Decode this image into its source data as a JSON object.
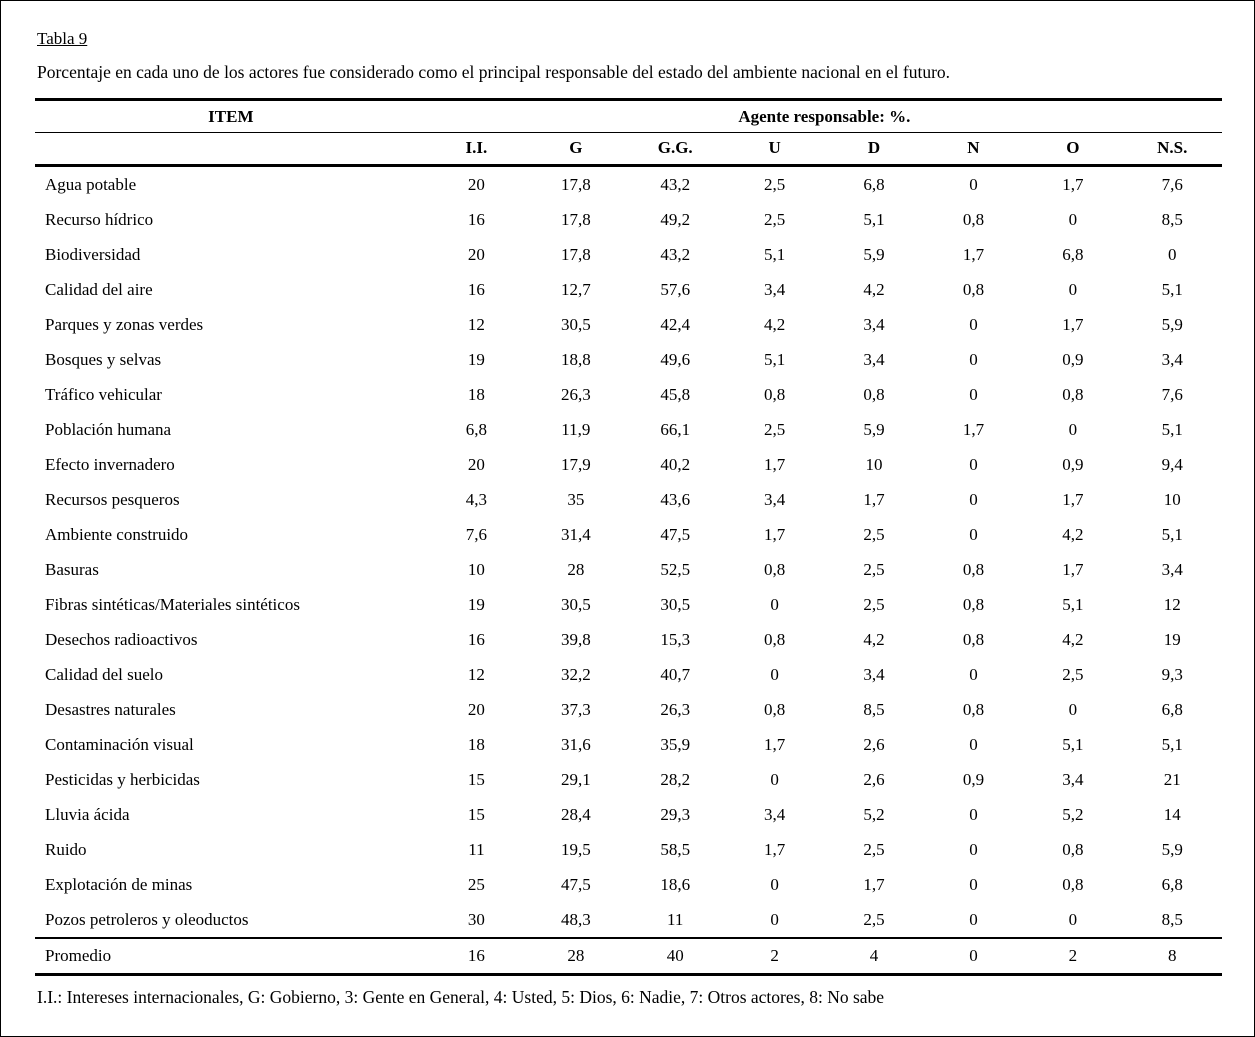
{
  "page": {
    "table_label": "Tabla 9",
    "caption": "Porcentaje en cada uno de los actores fue considerado como el principal responsable del estado del ambiente nacional en el futuro.",
    "footnote": "I.I.: Intereses internacionales, G: Gobierno, 3: Gente en General, 4: Usted, 5: Dios, 6: Nadie, 7: Otros actores, 8: No sabe"
  },
  "chart_data": {
    "type": "table",
    "title": "Porcentaje en cada uno de los actores fue considerado como el principal responsable del estado del ambiente nacional en el futuro.",
    "group_headers": [
      "ITEM",
      "Agente responsable: %."
    ],
    "columns": [
      "I.I.",
      "G",
      "G.G.",
      "U",
      "D",
      "N",
      "O",
      "N.S."
    ],
    "rows": [
      {
        "item": "Agua potable",
        "values": [
          "20",
          "17,8",
          "43,2",
          "2,5",
          "6,8",
          "0",
          "1,7",
          "7,6"
        ]
      },
      {
        "item": "Recurso hídrico",
        "values": [
          "16",
          "17,8",
          "49,2",
          "2,5",
          "5,1",
          "0,8",
          "0",
          "8,5"
        ]
      },
      {
        "item": "Biodiversidad",
        "values": [
          "20",
          "17,8",
          "43,2",
          "5,1",
          "5,9",
          "1,7",
          "6,8",
          "0"
        ]
      },
      {
        "item": "Calidad del aire",
        "values": [
          "16",
          "12,7",
          "57,6",
          "3,4",
          "4,2",
          "0,8",
          "0",
          "5,1"
        ]
      },
      {
        "item": "Parques y zonas verdes",
        "values": [
          "12",
          "30,5",
          "42,4",
          "4,2",
          "3,4",
          "0",
          "1,7",
          "5,9"
        ]
      },
      {
        "item": "Bosques y selvas",
        "values": [
          "19",
          "18,8",
          "49,6",
          "5,1",
          "3,4",
          "0",
          "0,9",
          "3,4"
        ]
      },
      {
        "item": "Tráfico vehicular",
        "values": [
          "18",
          "26,3",
          "45,8",
          "0,8",
          "0,8",
          "0",
          "0,8",
          "7,6"
        ]
      },
      {
        "item": "Población humana",
        "values": [
          "6,8",
          "11,9",
          "66,1",
          "2,5",
          "5,9",
          "1,7",
          "0",
          "5,1"
        ]
      },
      {
        "item": "Efecto invernadero",
        "values": [
          "20",
          "17,9",
          "40,2",
          "1,7",
          "10",
          "0",
          "0,9",
          "9,4"
        ]
      },
      {
        "item": "Recursos pesqueros",
        "values": [
          "4,3",
          "35",
          "43,6",
          "3,4",
          "1,7",
          "0",
          "1,7",
          "10"
        ]
      },
      {
        "item": "Ambiente construido",
        "values": [
          "7,6",
          "31,4",
          "47,5",
          "1,7",
          "2,5",
          "0",
          "4,2",
          "5,1"
        ]
      },
      {
        "item": "Basuras",
        "values": [
          "10",
          "28",
          "52,5",
          "0,8",
          "2,5",
          "0,8",
          "1,7",
          "3,4"
        ]
      },
      {
        "item": "Fibras sintéticas/Materiales sintéticos",
        "values": [
          "19",
          "30,5",
          "30,5",
          "0",
          "2,5",
          "0,8",
          "5,1",
          "12"
        ]
      },
      {
        "item": "Desechos radioactivos",
        "values": [
          "16",
          "39,8",
          "15,3",
          "0,8",
          "4,2",
          "0,8",
          "4,2",
          "19"
        ]
      },
      {
        "item": "Calidad del suelo",
        "values": [
          "12",
          "32,2",
          "40,7",
          "0",
          "3,4",
          "0",
          "2,5",
          "9,3"
        ]
      },
      {
        "item": "Desastres naturales",
        "values": [
          "20",
          "37,3",
          "26,3",
          "0,8",
          "8,5",
          "0,8",
          "0",
          "6,8"
        ]
      },
      {
        "item": "Contaminación visual",
        "values": [
          "18",
          "31,6",
          "35,9",
          "1,7",
          "2,6",
          "0",
          "5,1",
          "5,1"
        ]
      },
      {
        "item": "Pesticidas y herbicidas",
        "values": [
          "15",
          "29,1",
          "28,2",
          "0",
          "2,6",
          "0,9",
          "3,4",
          "21"
        ]
      },
      {
        "item": "Lluvia ácida",
        "values": [
          "15",
          "28,4",
          "29,3",
          "3,4",
          "5,2",
          "0",
          "5,2",
          "14"
        ]
      },
      {
        "item": "Ruido",
        "values": [
          "11",
          "19,5",
          "58,5",
          "1,7",
          "2,5",
          "0",
          "0,8",
          "5,9"
        ]
      },
      {
        "item": "Explotación de minas",
        "values": [
          "25",
          "47,5",
          "18,6",
          "0",
          "1,7",
          "0",
          "0,8",
          "6,8"
        ]
      },
      {
        "item": "Pozos petroleros y oleoductos",
        "values": [
          "30",
          "48,3",
          "11",
          "0",
          "2,5",
          "0",
          "0",
          "8,5"
        ]
      }
    ],
    "footer": {
      "label": "Promedio",
      "values": [
        "16",
        "28",
        "40",
        "2",
        "4",
        "0",
        "2",
        "8"
      ]
    }
  }
}
